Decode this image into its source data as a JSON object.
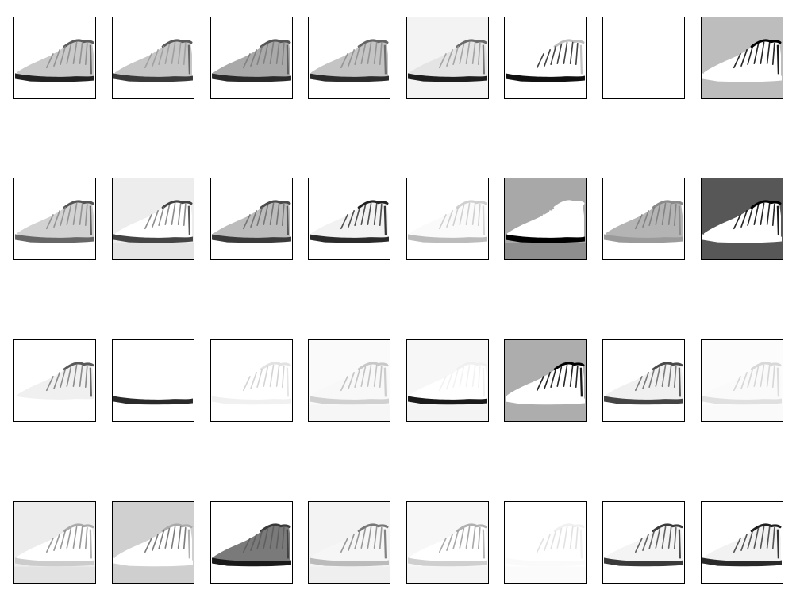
{
  "figure": {
    "subject": "boot",
    "rows": 4,
    "cols": 8,
    "tiles": [
      [
        {
          "bg": "#ffffff",
          "floor": "#ffffff",
          "fill": "#c9c9c9",
          "sole": "#222222",
          "edge": "#5c5c5c",
          "lace": "#8a8a8a"
        },
        {
          "bg": "#ffffff",
          "floor": "#ffffff",
          "fill": "#c6c6c6",
          "sole": "#3a3a3a",
          "edge": "#5a5a5a",
          "lace": "#9a9a9a"
        },
        {
          "bg": "#ffffff",
          "floor": "#ffffff",
          "fill": "#a9a9a9",
          "sole": "#2a2a2a",
          "edge": "#555555",
          "lace": "#7a7a7a"
        },
        {
          "bg": "#ffffff",
          "floor": "#ffffff",
          "fill": "#c4c4c4",
          "sole": "#2c2c2c",
          "edge": "#666666",
          "lace": "#8c8c8c"
        },
        {
          "bg": "#f3f3f3",
          "floor": "#f3f3f3",
          "fill": "#e4e4e4",
          "sole": "#1e1e1e",
          "edge": "#6a6a6a",
          "lace": "#9a9a9a"
        },
        {
          "bg": "#ffffff",
          "floor": "#ffffff",
          "fill": "#ffffff",
          "sole": "#111111",
          "edge": "#bdbdbd",
          "lace": "#222222"
        },
        {
          "bg": "#ffffff",
          "floor": "#ffffff",
          "fill": "#ffffff",
          "sole": "#ffffff",
          "edge": "#ffffff",
          "lace": "#ffffff"
        },
        {
          "bg": "#bdbdbd",
          "floor": "#bdbdbd",
          "fill": "#ffffff",
          "sole": "#ffffff",
          "edge": "#000000",
          "lace": "#000000"
        }
      ],
      [
        {
          "bg": "#ffffff",
          "floor": "#ffffff",
          "fill": "#d2d2d2",
          "sole": "#666666",
          "edge": "#555555",
          "lace": "#8a8a8a"
        },
        {
          "bg": "#ededed",
          "floor": "#e4e4e4",
          "fill": "#ffffff",
          "sole": "#444444",
          "edge": "#444444",
          "lace": "#7a7a7a"
        },
        {
          "bg": "#ffffff",
          "floor": "#ffffff",
          "fill": "#bcbcbc",
          "sole": "#3a3a3a",
          "edge": "#4a4a4a",
          "lace": "#6a6a6a"
        },
        {
          "bg": "#ffffff",
          "floor": "#ffffff",
          "fill": "#f2f2f2",
          "sole": "#2a2a2a",
          "edge": "#222222",
          "lace": "#333333"
        },
        {
          "bg": "#ffffff",
          "floor": "#ffffff",
          "fill": "#fafafa",
          "sole": "#bcbcbc",
          "edge": "#d0d0d0",
          "lace": "#c8c8c8"
        },
        {
          "bg": "#a8a8a8",
          "floor": "#8e8e8e",
          "fill": "#ffffff",
          "sole": "#000000",
          "edge": "#ffffff",
          "lace": "#ffffff"
        },
        {
          "bg": "#ffffff",
          "floor": "#ffffff",
          "fill": "#b4b4b4",
          "sole": "#9a9a9a",
          "edge": "#8a8a8a",
          "lace": "#7a7a7a"
        },
        {
          "bg": "#575757",
          "floor": "#575757",
          "fill": "#ffffff",
          "sole": "#ffffff",
          "edge": "#000000",
          "lace": "#000000"
        }
      ],
      [
        {
          "bg": "#ffffff",
          "floor": "#ffffff",
          "fill": "#f0f0f0",
          "sole": "#ffffff",
          "edge": "#5a5a5a",
          "lace": "#7a7a7a"
        },
        {
          "bg": "#ffffff",
          "floor": "#ffffff",
          "fill": "#ffffff",
          "sole": "#2a2a2a",
          "edge": "#ffffff",
          "lace": "#ffffff"
        },
        {
          "bg": "#ffffff",
          "floor": "#ffffff",
          "fill": "#ffffff",
          "sole": "#f0f0f0",
          "edge": "#e2e2e2",
          "lace": "#cccccc"
        },
        {
          "bg": "#fafafa",
          "floor": "#f6f6f6",
          "fill": "#f8f8f8",
          "sole": "#d0d0d0",
          "edge": "#c8c8c8",
          "lace": "#bbbbbb"
        },
        {
          "bg": "#f7f7f7",
          "floor": "#f4f4f4",
          "fill": "#ffffff",
          "sole": "#1a1a1a",
          "edge": "#f0f0f0",
          "lace": "#f0f0f0"
        },
        {
          "bg": "#adadad",
          "floor": "#adadad",
          "fill": "#ffffff",
          "sole": "#ffffff",
          "edge": "#000000",
          "lace": "#000000"
        },
        {
          "bg": "#ffffff",
          "floor": "#ffffff",
          "fill": "#f0f0f0",
          "sole": "#444444",
          "edge": "#4a4a4a",
          "lace": "#666666"
        },
        {
          "bg": "#fcfcfc",
          "floor": "#fafafa",
          "fill": "#fafafa",
          "sole": "#e0e0e0",
          "edge": "#d8d8d8",
          "lace": "#d0d0d0"
        }
      ],
      [
        {
          "bg": "#ececec",
          "floor": "#e2e2e2",
          "fill": "#ffffff",
          "sole": "#cccccc",
          "edge": "#aaaaaa",
          "lace": "#888888"
        },
        {
          "bg": "#d0d0d0",
          "floor": "#cfcfcf",
          "fill": "#ffffff",
          "sole": "#ffffff",
          "edge": "#aaaaaa",
          "lace": "#666666"
        },
        {
          "bg": "#ffffff",
          "floor": "#ffffff",
          "fill": "#7a7a7a",
          "sole": "#1a1a1a",
          "edge": "#3a3a3a",
          "lace": "#5a5a5a"
        },
        {
          "bg": "#f3f3f3",
          "floor": "#efefef",
          "fill": "#f6f6f6",
          "sole": "#bbbbbb",
          "edge": "#777777",
          "lace": "#888888"
        },
        {
          "bg": "#f7f7f7",
          "floor": "#f4f4f4",
          "fill": "#ffffff",
          "sole": "#cfcfcf",
          "edge": "#b0b0b0",
          "lace": "#9a9a9a"
        },
        {
          "bg": "#ffffff",
          "floor": "#fbfbfb",
          "fill": "#ffffff",
          "sole": "#fafafa",
          "edge": "#f0f0f0",
          "lace": "#dddddd"
        },
        {
          "bg": "#ffffff",
          "floor": "#ffffff",
          "fill": "#f4f4f4",
          "sole": "#3a3a3a",
          "edge": "#3a3a3a",
          "lace": "#4a4a4a"
        },
        {
          "bg": "#ffffff",
          "floor": "#ffffff",
          "fill": "#f2f2f2",
          "sole": "#2a2a2a",
          "edge": "#1f1f1f",
          "lace": "#3a3a3a"
        }
      ]
    ]
  }
}
